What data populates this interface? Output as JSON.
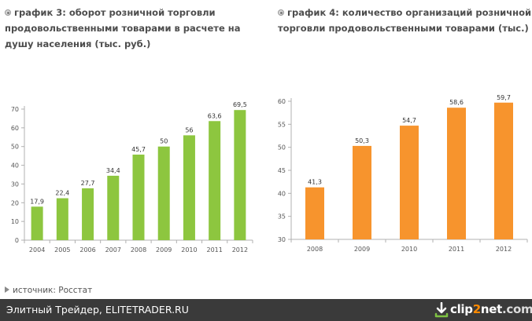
{
  "chart_data": [
    {
      "type": "bar",
      "title": "график 3: оборот розничной торговли продовольственными товарами в расчете на душу населения (тыс. руб.)",
      "categories": [
        "2004",
        "2005",
        "2006",
        "2007",
        "2008",
        "2009",
        "2010",
        "2011",
        "2012"
      ],
      "values": [
        17.9,
        22.4,
        27.7,
        34.4,
        45.7,
        50,
        56,
        63.6,
        69.5
      ],
      "value_labels": [
        "17,9",
        "22,4",
        "27,7",
        "34,4",
        "45,7",
        "50",
        "56",
        "63,6",
        "69,5"
      ],
      "ylim": [
        0,
        70
      ],
      "yticks": [
        0,
        10,
        20,
        30,
        40,
        50,
        60,
        70
      ],
      "xlabel": "",
      "ylabel": "",
      "grid": false,
      "color": "#8dc63f"
    },
    {
      "type": "bar",
      "title": "график 4: количество организаций розничной торговли продовольственными товарами (тыс.)",
      "categories": [
        "2008",
        "2009",
        "2010",
        "2011",
        "2012"
      ],
      "values": [
        41.3,
        50.3,
        54.7,
        58.6,
        59.7
      ],
      "value_labels": [
        "41,3",
        "50,3",
        "54,7",
        "58,6",
        "59,7"
      ],
      "ylim": [
        30,
        60
      ],
      "yticks": [
        30,
        35,
        40,
        45,
        50,
        55,
        60
      ],
      "xlabel": "",
      "ylabel": "",
      "grid": false,
      "color": "#f7942d"
    }
  ],
  "source": {
    "text": "источник: Росстат"
  },
  "footer": {
    "text": "Элитный Трейдер, ELITETRADER.RU",
    "brand_prefix": "clip",
    "brand_accent": "2",
    "brand_name": "net",
    "brand_tld": ".com"
  },
  "icons": {
    "title_bullet": "bullet-circle-icon",
    "source_arrow": "play-arrow-icon",
    "brand_logo": "clip2net-logo-icon"
  }
}
